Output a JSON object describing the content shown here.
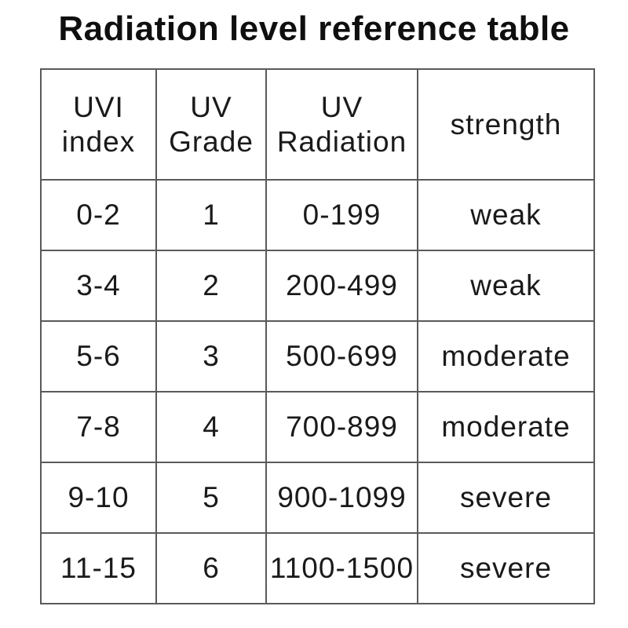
{
  "chart_data": {
    "type": "table",
    "title": "Radiation level reference table",
    "columns": [
      "UVI\nindex",
      "UV\nGrade",
      "UV\nRadiation",
      "strength"
    ],
    "rows": [
      [
        "0-2",
        "1",
        "0-199",
        "weak"
      ],
      [
        "3-4",
        "2",
        "200-499",
        "weak"
      ],
      [
        "5-6",
        "3",
        "500-699",
        "moderate"
      ],
      [
        "7-8",
        "4",
        "700-899",
        "moderate"
      ],
      [
        "9-10",
        "5",
        "900-1099",
        "severe"
      ],
      [
        "11-15",
        "6",
        "1100-1500",
        "severe"
      ]
    ]
  },
  "colors": {
    "text": "#1a1a1a",
    "border": "#5a5a5a",
    "background": "#ffffff"
  }
}
